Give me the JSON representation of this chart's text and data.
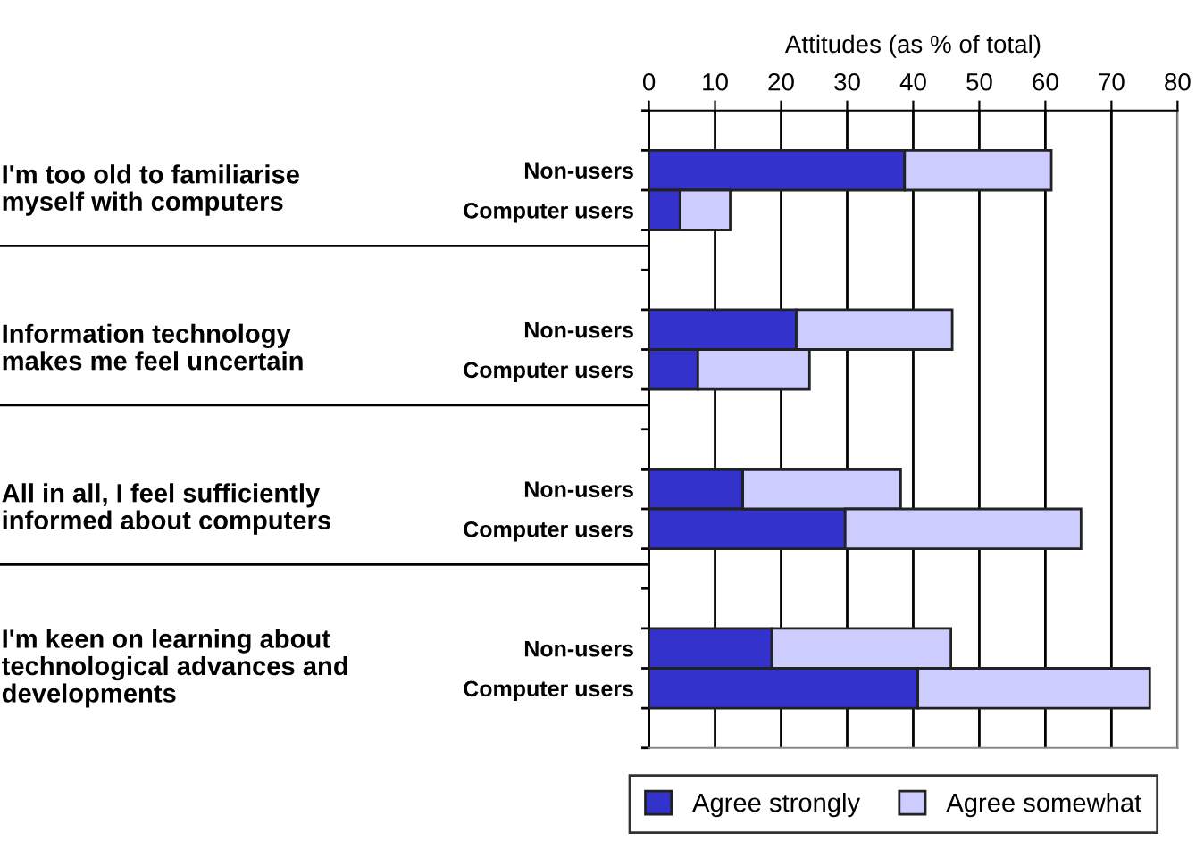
{
  "chart_data": {
    "type": "bar",
    "orientation": "horizontal",
    "stacked": true,
    "xlabel": "Attitudes (as % of total)",
    "categories": [
      null,
      "Non-users",
      "Computer users",
      null,
      null,
      "Non-users",
      "Computer users",
      null,
      null,
      "Non-users",
      "Computer users",
      null,
      null,
      "Non-users",
      "Computer users",
      null
    ],
    "series": [
      {
        "name": "Agree strongly",
        "color": "#3333cc",
        "values": [
          null,
          38.7,
          4.7,
          null,
          null,
          22.3,
          7.4,
          null,
          null,
          14.2,
          29.7,
          null,
          null,
          18.6,
          40.7,
          null
        ]
      },
      {
        "name": "Agree somewhat",
        "color": "#ccccff",
        "values": [
          null,
          22.2,
          7.6,
          null,
          null,
          23.6,
          16.9,
          null,
          null,
          23.9,
          35.7,
          null,
          null,
          27.1,
          35.1,
          null
        ]
      }
    ],
    "annotations": [
      "I'm too old to familiarise myself with computers",
      "Information technology makes me feel uncertain",
      "All in all, I feel sufficiently informed about computers",
      "I'm keen on learning about technological advances and developments"
    ],
    "xlim": [
      0,
      80
    ],
    "xticks": [
      0,
      10,
      20,
      30,
      40,
      50,
      60,
      70,
      80
    ],
    "grid": "x",
    "legend": "bottom"
  }
}
